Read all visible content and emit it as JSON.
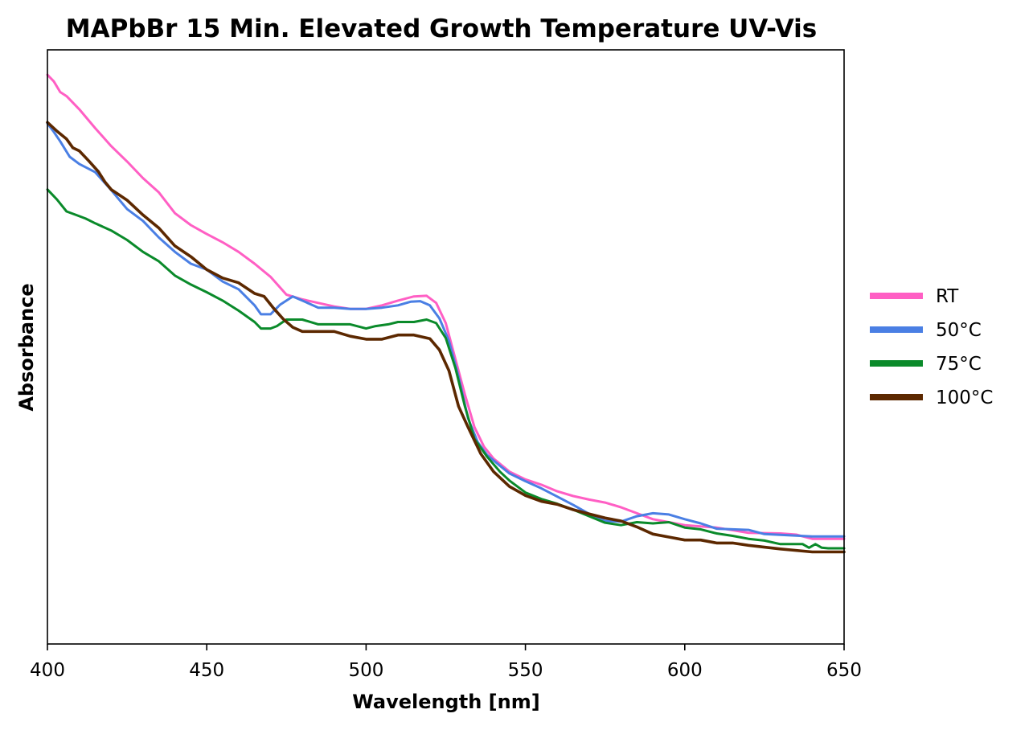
{
  "chart_data": {
    "type": "line",
    "title": "MAPbBr 15 Min. Elevated Growth Temperature UV-Vis",
    "xlabel": "Wavelength [nm]",
    "ylabel": "Absorbance",
    "xlim": [
      400,
      650
    ],
    "ylim": [
      0,
      1
    ],
    "x_ticks": [
      400,
      450,
      500,
      550,
      600,
      650
    ],
    "x_tick_labels": [
      "400",
      "450",
      "500",
      "550",
      "600",
      "650"
    ],
    "y_ticks_shown": false,
    "grid": false,
    "legend_position": "right-outside",
    "series": [
      {
        "name": "RT",
        "color": "#ff5fc4",
        "points": [
          [
            400,
            0.958
          ],
          [
            402,
            0.947
          ],
          [
            404,
            0.929
          ],
          [
            406,
            0.922
          ],
          [
            410,
            0.9
          ],
          [
            415,
            0.868
          ],
          [
            420,
            0.838
          ],
          [
            425,
            0.812
          ],
          [
            430,
            0.784
          ],
          [
            435,
            0.76
          ],
          [
            440,
            0.725
          ],
          [
            445,
            0.705
          ],
          [
            450,
            0.69
          ],
          [
            455,
            0.676
          ],
          [
            460,
            0.66
          ],
          [
            465,
            0.64
          ],
          [
            470,
            0.618
          ],
          [
            475,
            0.588
          ],
          [
            480,
            0.58
          ],
          [
            485,
            0.574
          ],
          [
            490,
            0.568
          ],
          [
            495,
            0.564
          ],
          [
            500,
            0.564
          ],
          [
            505,
            0.57
          ],
          [
            510,
            0.578
          ],
          [
            515,
            0.585
          ],
          [
            519,
            0.586
          ],
          [
            522,
            0.574
          ],
          [
            525,
            0.54
          ],
          [
            528,
            0.48
          ],
          [
            531,
            0.42
          ],
          [
            534,
            0.365
          ],
          [
            537,
            0.332
          ],
          [
            540,
            0.312
          ],
          [
            545,
            0.29
          ],
          [
            550,
            0.277
          ],
          [
            555,
            0.268
          ],
          [
            560,
            0.257
          ],
          [
            565,
            0.249
          ],
          [
            570,
            0.243
          ],
          [
            575,
            0.238
          ],
          [
            580,
            0.23
          ],
          [
            585,
            0.22
          ],
          [
            590,
            0.21
          ],
          [
            595,
            0.205
          ],
          [
            600,
            0.2
          ],
          [
            610,
            0.196
          ],
          [
            620,
            0.187
          ],
          [
            630,
            0.186
          ],
          [
            635,
            0.184
          ],
          [
            640,
            0.177
          ],
          [
            650,
            0.177
          ]
        ]
      },
      {
        "name": "50°C",
        "color": "#4a7fe4",
        "points": [
          [
            400,
            0.876
          ],
          [
            402,
            0.862
          ],
          [
            404,
            0.846
          ],
          [
            407,
            0.82
          ],
          [
            410,
            0.808
          ],
          [
            415,
            0.794
          ],
          [
            420,
            0.764
          ],
          [
            425,
            0.732
          ],
          [
            430,
            0.712
          ],
          [
            435,
            0.684
          ],
          [
            440,
            0.66
          ],
          [
            445,
            0.64
          ],
          [
            450,
            0.63
          ],
          [
            455,
            0.61
          ],
          [
            460,
            0.597
          ],
          [
            465,
            0.57
          ],
          [
            467,
            0.555
          ],
          [
            470,
            0.555
          ],
          [
            473,
            0.571
          ],
          [
            477,
            0.585
          ],
          [
            480,
            0.578
          ],
          [
            485,
            0.566
          ],
          [
            490,
            0.566
          ],
          [
            495,
            0.564
          ],
          [
            500,
            0.564
          ],
          [
            505,
            0.566
          ],
          [
            510,
            0.57
          ],
          [
            514,
            0.576
          ],
          [
            517,
            0.577
          ],
          [
            520,
            0.57
          ],
          [
            523,
            0.548
          ],
          [
            526,
            0.51
          ],
          [
            529,
            0.45
          ],
          [
            532,
            0.38
          ],
          [
            535,
            0.34
          ],
          [
            538,
            0.318
          ],
          [
            542,
            0.3
          ],
          [
            545,
            0.287
          ],
          [
            550,
            0.274
          ],
          [
            555,
            0.262
          ],
          [
            560,
            0.248
          ],
          [
            565,
            0.234
          ],
          [
            570,
            0.219
          ],
          [
            575,
            0.207
          ],
          [
            580,
            0.206
          ],
          [
            585,
            0.215
          ],
          [
            590,
            0.22
          ],
          [
            595,
            0.218
          ],
          [
            600,
            0.21
          ],
          [
            605,
            0.203
          ],
          [
            610,
            0.194
          ],
          [
            620,
            0.192
          ],
          [
            625,
            0.185
          ],
          [
            640,
            0.181
          ],
          [
            650,
            0.181
          ]
        ]
      },
      {
        "name": "75°C",
        "color": "#0a8a2a",
        "points": [
          [
            400,
            0.765
          ],
          [
            403,
            0.748
          ],
          [
            406,
            0.728
          ],
          [
            409,
            0.722
          ],
          [
            412,
            0.716
          ],
          [
            415,
            0.708
          ],
          [
            420,
            0.696
          ],
          [
            425,
            0.68
          ],
          [
            430,
            0.66
          ],
          [
            435,
            0.644
          ],
          [
            440,
            0.62
          ],
          [
            445,
            0.605
          ],
          [
            450,
            0.592
          ],
          [
            455,
            0.578
          ],
          [
            460,
            0.561
          ],
          [
            465,
            0.542
          ],
          [
            467,
            0.531
          ],
          [
            470,
            0.531
          ],
          [
            472,
            0.535
          ],
          [
            475,
            0.546
          ],
          [
            480,
            0.546
          ],
          [
            485,
            0.538
          ],
          [
            490,
            0.538
          ],
          [
            495,
            0.538
          ],
          [
            500,
            0.531
          ],
          [
            503,
            0.535
          ],
          [
            507,
            0.538
          ],
          [
            510,
            0.542
          ],
          [
            515,
            0.542
          ],
          [
            519,
            0.546
          ],
          [
            522,
            0.54
          ],
          [
            525,
            0.515
          ],
          [
            528,
            0.465
          ],
          [
            531,
            0.4
          ],
          [
            534,
            0.345
          ],
          [
            538,
            0.315
          ],
          [
            542,
            0.29
          ],
          [
            545,
            0.275
          ],
          [
            550,
            0.255
          ],
          [
            555,
            0.244
          ],
          [
            560,
            0.236
          ],
          [
            565,
            0.226
          ],
          [
            570,
            0.215
          ],
          [
            575,
            0.204
          ],
          [
            580,
            0.2
          ],
          [
            585,
            0.205
          ],
          [
            590,
            0.203
          ],
          [
            595,
            0.205
          ],
          [
            600,
            0.196
          ],
          [
            605,
            0.193
          ],
          [
            610,
            0.186
          ],
          [
            615,
            0.182
          ],
          [
            620,
            0.177
          ],
          [
            625,
            0.174
          ],
          [
            630,
            0.168
          ],
          [
            637,
            0.168
          ],
          [
            639,
            0.162
          ],
          [
            641,
            0.168
          ],
          [
            643,
            0.162
          ],
          [
            645,
            0.161
          ],
          [
            650,
            0.161
          ]
        ]
      },
      {
        "name": "100°C",
        "color": "#5c2800",
        "points": [
          [
            400,
            0.878
          ],
          [
            403,
            0.863
          ],
          [
            406,
            0.85
          ],
          [
            408,
            0.835
          ],
          [
            410,
            0.83
          ],
          [
            413,
            0.813
          ],
          [
            416,
            0.795
          ],
          [
            418,
            0.778
          ],
          [
            420,
            0.765
          ],
          [
            425,
            0.747
          ],
          [
            430,
            0.722
          ],
          [
            435,
            0.7
          ],
          [
            440,
            0.67
          ],
          [
            445,
            0.652
          ],
          [
            450,
            0.63
          ],
          [
            455,
            0.616
          ],
          [
            460,
            0.608
          ],
          [
            465,
            0.59
          ],
          [
            468,
            0.585
          ],
          [
            471,
            0.565
          ],
          [
            474,
            0.547
          ],
          [
            477,
            0.533
          ],
          [
            480,
            0.526
          ],
          [
            485,
            0.526
          ],
          [
            490,
            0.526
          ],
          [
            495,
            0.518
          ],
          [
            500,
            0.513
          ],
          [
            505,
            0.513
          ],
          [
            510,
            0.52
          ],
          [
            515,
            0.52
          ],
          [
            520,
            0.514
          ],
          [
            523,
            0.495
          ],
          [
            526,
            0.46
          ],
          [
            529,
            0.4
          ],
          [
            532,
            0.365
          ],
          [
            536,
            0.32
          ],
          [
            540,
            0.29
          ],
          [
            545,
            0.265
          ],
          [
            550,
            0.25
          ],
          [
            555,
            0.24
          ],
          [
            560,
            0.235
          ],
          [
            565,
            0.226
          ],
          [
            570,
            0.219
          ],
          [
            575,
            0.212
          ],
          [
            580,
            0.207
          ],
          [
            585,
            0.197
          ],
          [
            590,
            0.185
          ],
          [
            595,
            0.18
          ],
          [
            600,
            0.175
          ],
          [
            605,
            0.175
          ],
          [
            610,
            0.17
          ],
          [
            615,
            0.17
          ],
          [
            620,
            0.166
          ],
          [
            630,
            0.16
          ],
          [
            640,
            0.155
          ],
          [
            650,
            0.155
          ]
        ]
      }
    ]
  }
}
